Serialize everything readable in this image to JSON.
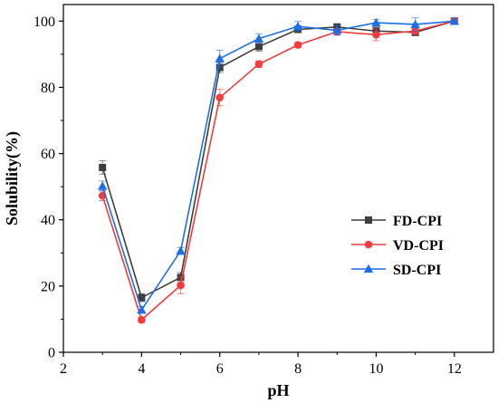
{
  "chart_data": {
    "type": "line",
    "xlabel": "pH",
    "ylabel": "Solubility(%)",
    "xlim": [
      2,
      13
    ],
    "ylim": [
      0,
      105
    ],
    "xticks": [
      2,
      4,
      6,
      8,
      10,
      12
    ],
    "yticks": [
      0,
      20,
      40,
      60,
      80,
      100
    ],
    "grid": false,
    "legend_position": "center-right",
    "x": [
      3,
      4,
      5,
      6,
      7,
      8,
      9,
      10,
      11,
      12
    ],
    "series": [
      {
        "name": "FD-CPI",
        "color": "#3d3d3d",
        "marker": "square",
        "values": [
          55.8,
          16.5,
          22.6,
          86.0,
          92.3,
          97.5,
          98.2,
          97.0,
          96.6,
          100.0
        ],
        "errors": [
          2.0,
          1.2,
          1.5,
          1.5,
          1.4,
          1.0,
          1.0,
          1.2,
          1.0,
          0.5
        ]
      },
      {
        "name": "VD-CPI",
        "color": "#f03c3c",
        "marker": "circle",
        "values": [
          47.3,
          9.8,
          20.2,
          76.9,
          87.0,
          92.8,
          96.8,
          95.9,
          97.0,
          100.0
        ],
        "errors": [
          1.5,
          0.8,
          2.5,
          2.5,
          1.0,
          0.8,
          1.0,
          1.8,
          1.0,
          0.5
        ]
      },
      {
        "name": "SD-CPI",
        "color": "#1e6ee6",
        "marker": "triangle",
        "values": [
          50.2,
          12.8,
          30.6,
          88.7,
          94.7,
          98.4,
          97.2,
          99.5,
          99.0,
          100.0
        ],
        "errors": [
          1.5,
          1.0,
          1.0,
          2.5,
          1.5,
          1.5,
          1.5,
          1.0,
          2.0,
          0.5
        ]
      }
    ]
  }
}
